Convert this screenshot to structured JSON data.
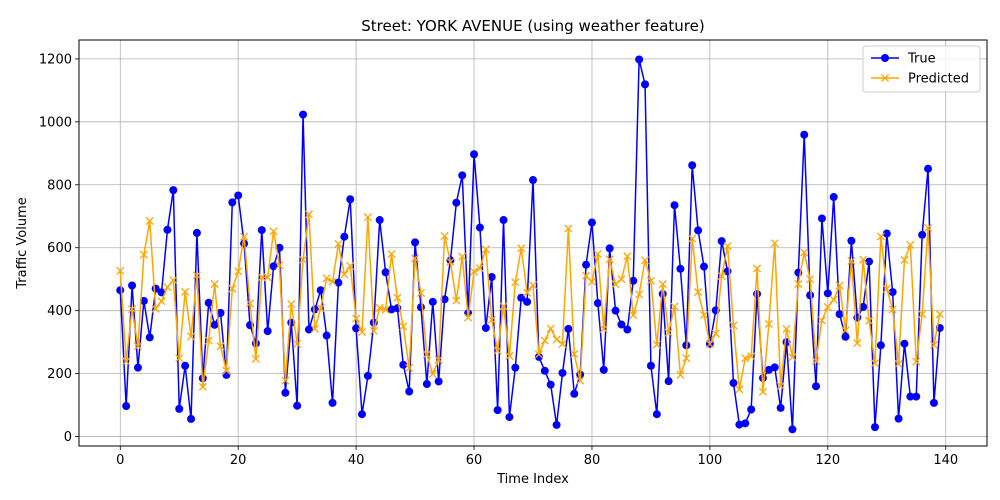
{
  "chart_data": {
    "type": "line",
    "title": "Street: YORK AVENUE (using weather feature)",
    "xlabel": "Time Index",
    "ylabel": "Traffic Volume",
    "xlim": [
      -7,
      147
    ],
    "ylim": [
      -30,
      1260
    ],
    "xticks": [
      0,
      20,
      40,
      60,
      80,
      100,
      120,
      140
    ],
    "yticks": [
      0,
      200,
      400,
      600,
      800,
      1000,
      1200
    ],
    "grid": true,
    "legend_position": "top-right",
    "series": [
      {
        "name": "True",
        "color": "#0000ff",
        "marker": "circle",
        "values": [
          465,
          97,
          480,
          219,
          431,
          315,
          470,
          458,
          657,
          783,
          88,
          225,
          56,
          647,
          185,
          425,
          355,
          393,
          196,
          744,
          766,
          613,
          354,
          296,
          656,
          335,
          541,
          600,
          139,
          362,
          98,
          1023,
          340,
          404,
          465,
          321,
          107,
          489,
          635,
          754,
          344,
          71,
          193,
          362,
          688,
          522,
          404,
          408,
          228,
          143,
          617,
          411,
          167,
          428,
          175,
          436,
          560,
          743,
          830,
          392,
          897,
          664,
          345,
          507,
          84,
          688,
          62,
          219,
          441,
          428,
          815,
          253,
          209,
          165,
          37,
          202,
          342,
          136,
          197,
          546,
          680,
          424,
          212,
          598,
          400,
          356,
          340,
          495,
          1198,
          1119,
          225,
          71,
          453,
          176,
          735,
          533,
          290,
          862,
          655,
          540,
          295,
          401,
          621,
          525,
          170,
          38,
          42,
          86,
          453,
          186,
          212,
          220,
          91,
          300,
          23,
          521,
          959,
          449,
          160,
          693,
          455,
          761,
          389,
          317,
          622,
          378,
          412,
          556,
          30,
          290,
          645,
          459,
          57,
          295,
          127,
          127,
          641,
          851,
          107,
          345
        ]
      },
      {
        "name": "Predicted",
        "color": "#ffa500",
        "marker": "x",
        "values": [
          527,
          239,
          405,
          287,
          578,
          685,
          406,
          430,
          475,
          497,
          249,
          460,
          318,
          512,
          158,
          305,
          485,
          287,
          209,
          470,
          525,
          635,
          423,
          247,
          506,
          506,
          652,
          544,
          178,
          421,
          294,
          562,
          706,
          342,
          408,
          503,
          492,
          612,
          515,
          542,
          375,
          332,
          697,
          336,
          409,
          403,
          580,
          441,
          350,
          218,
          566,
          456,
          261,
          199,
          244,
          637,
          555,
          432,
          572,
          378,
          524,
          535,
          595,
          371,
          273,
          414,
          256,
          490,
          598,
          457,
          481,
          261,
          305,
          343,
          308,
          294,
          661,
          262,
          178,
          511,
          492,
          580,
          342,
          563,
          484,
          500,
          573,
          386,
          452,
          560,
          495,
          292,
          484,
          330,
          413,
          196,
          249,
          629,
          459,
          386,
          294,
          327,
          510,
          605,
          353,
          150,
          249,
          255,
          534,
          142,
          358,
          614,
          161,
          342,
          252,
          485,
          585,
          500,
          240,
          369,
          412,
          435,
          480,
          337,
          558,
          297,
          562,
          368,
          233,
          636,
          469,
          404,
          231,
          561,
          609,
          238,
          389,
          663,
          291,
          389
        ]
      }
    ]
  }
}
